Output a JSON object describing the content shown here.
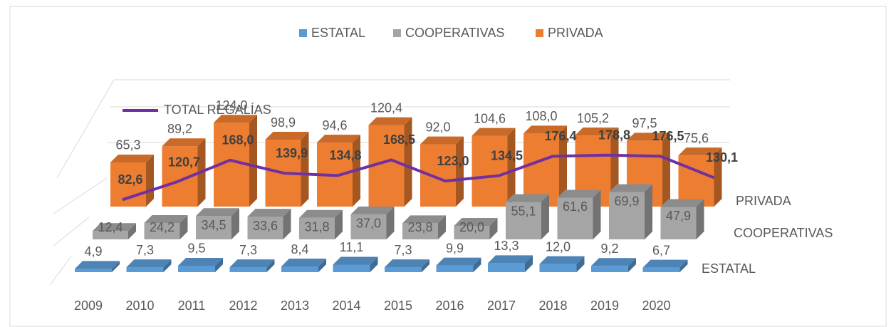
{
  "chart_data": {
    "type": "bar3d",
    "categories": [
      "2009",
      "2010",
      "2011",
      "2012",
      "2013",
      "2014",
      "2015",
      "2016",
      "2017",
      "2018",
      "2019",
      "2020"
    ],
    "series": [
      {
        "name": "ESTATAL",
        "color": "#5b9bd5",
        "values": [
          4.9,
          7.3,
          9.5,
          7.3,
          8.4,
          11.1,
          7.3,
          9.9,
          13.3,
          12.0,
          9.2,
          6.7
        ],
        "value_labels": [
          "4,9",
          "7,3",
          "9,5",
          "7,3",
          "8,4",
          "11,1",
          "7,3",
          "9,9",
          "13,3",
          "12,0",
          "9,2",
          "6,7"
        ]
      },
      {
        "name": "COOPERATIVAS",
        "color": "#a5a5a5",
        "values": [
          12.4,
          24.2,
          34.5,
          33.6,
          31.8,
          37.0,
          23.8,
          20.0,
          55.1,
          61.6,
          69.9,
          47.9
        ],
        "value_labels": [
          "12,4",
          "24,2",
          "34,5",
          "33,6",
          "31,8",
          "37,0",
          "23,8",
          "20,0",
          "55,1",
          "61,6",
          "69,9",
          "47,9"
        ]
      },
      {
        "name": "PRIVADA",
        "color": "#ed7d31",
        "values": [
          65.3,
          89.2,
          124.0,
          98.9,
          94.6,
          120.4,
          92.0,
          104.6,
          108.0,
          105.2,
          97.5,
          75.6
        ],
        "value_labels": [
          "65,3",
          "89,2",
          "124,0",
          "98,9",
          "94,6",
          "120,4",
          "92,0",
          "104,6",
          "108,0",
          "105,2",
          "97,5",
          "75,6"
        ]
      }
    ],
    "line": {
      "name": "TOTAL REGALÍAS",
      "color": "#7030a0",
      "values": [
        82.6,
        120.7,
        168.0,
        139.9,
        134.8,
        168.5,
        123.0,
        134.5,
        176.4,
        178.8,
        176.5,
        130.1
      ],
      "value_labels": [
        "82,6",
        "120,7",
        "168,0",
        "139,9",
        "134,8",
        "168,5",
        "123,0",
        "134,5",
        "176,4",
        "178,8",
        "176,5",
        "130,1"
      ]
    }
  }
}
